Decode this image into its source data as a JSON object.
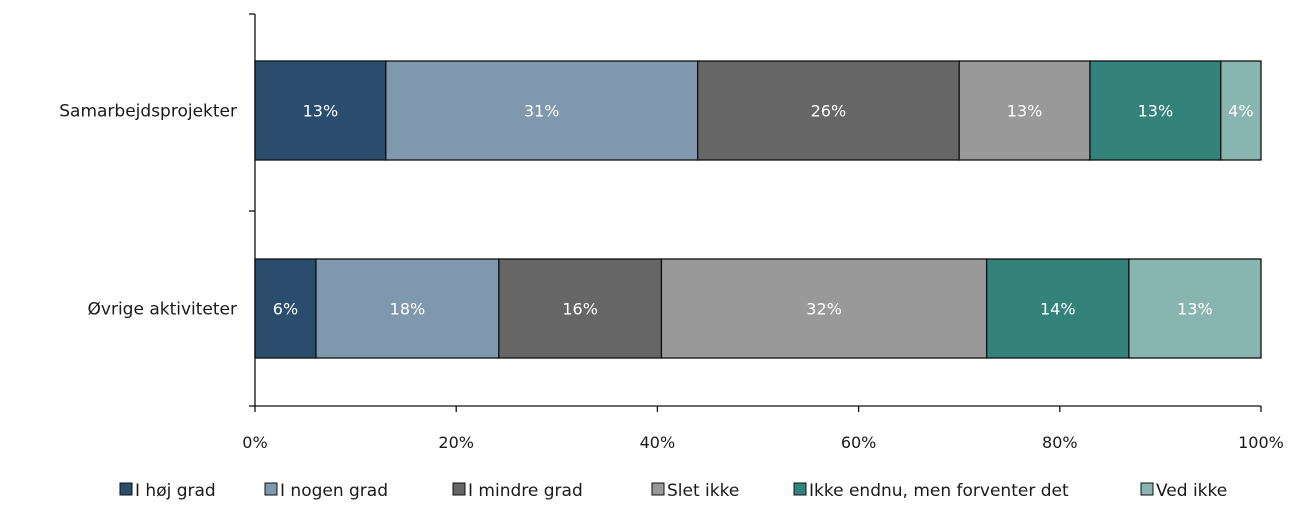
{
  "chart_data": {
    "type": "bar",
    "orientation": "horizontal",
    "stacked": true,
    "percent_stacked": true,
    "categories": [
      "Samarbejdsprojekter",
      "Øvrige aktiviteter"
    ],
    "series": [
      {
        "name": "I høj grad",
        "color": "#2a4d6e",
        "values": [
          13,
          6
        ],
        "labels": [
          "13%",
          "6%"
        ]
      },
      {
        "name": "I nogen grad",
        "color": "#7f98ad",
        "values": [
          31,
          18
        ],
        "labels": [
          "31%",
          "18%"
        ]
      },
      {
        "name": "I mindre grad",
        "color": "#666666",
        "values": [
          26,
          16
        ],
        "labels": [
          "26%",
          "16%"
        ]
      },
      {
        "name": "Slet ikke",
        "color": "#999999",
        "values": [
          13,
          32
        ],
        "labels": [
          "13%",
          "32%"
        ]
      },
      {
        "name": "Ikke endnu, men forventer det",
        "color": "#33837a",
        "values": [
          13,
          14
        ],
        "labels": [
          "13%",
          "14%"
        ]
      },
      {
        "name": "Ved ikke",
        "color": "#88b5af",
        "values": [
          4,
          13
        ],
        "labels": [
          "4%",
          "13%"
        ]
      }
    ],
    "xlim": [
      0,
      100
    ],
    "xticks": [
      "0%",
      "20%",
      "40%",
      "60%",
      "80%",
      "100%"
    ],
    "grid": false,
    "legend_position": "bottom"
  }
}
